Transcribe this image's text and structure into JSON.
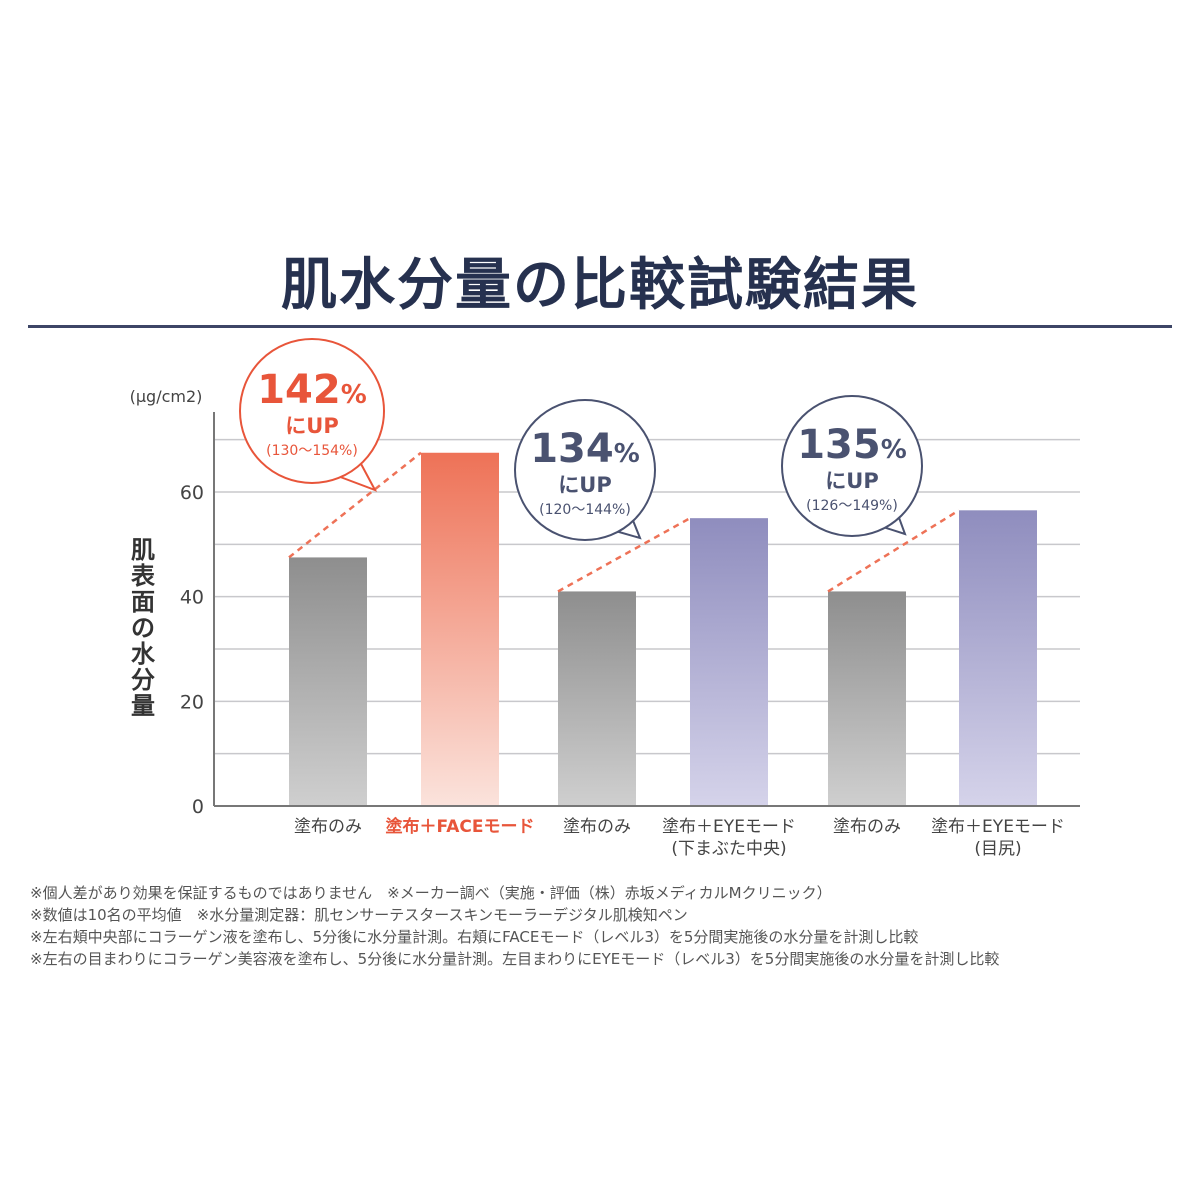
{
  "title": "肌水分量の比較試験結果",
  "chart_data": {
    "type": "bar",
    "unit": "(μg/cm2)",
    "ylabel": "肌表面の水分量",
    "ylim": [
      0,
      75
    ],
    "yticks": [
      0,
      20,
      40,
      60
    ],
    "grid": true,
    "categories": [
      "塗布のみ",
      "塗布＋FACEモード",
      "塗布のみ",
      "塗布＋EYEモード",
      "塗布のみ",
      "塗布＋EYEモード"
    ],
    "category_sublabels": [
      "",
      "",
      "",
      "(下まぶた中央)",
      "",
      "(目尻)"
    ],
    "values": [
      47.5,
      67.5,
      41,
      55,
      41,
      56.5
    ],
    "bar_styles": [
      "gray",
      "orange",
      "gray",
      "purple",
      "gray",
      "purple"
    ],
    "callouts": [
      {
        "pct": "142",
        "unit": "%",
        "line2": "にUP",
        "line3": "(130〜154%)",
        "color": "#e8553a"
      },
      {
        "pct": "134",
        "unit": "%",
        "line2": "にUP",
        "line3": "(120〜144%)",
        "color": "#4a5270"
      },
      {
        "pct": "135",
        "unit": "%",
        "line2": "にUP",
        "line3": "(126〜149%)",
        "color": "#4a5270"
      }
    ]
  },
  "colors": {
    "gray_top": "#8e8e8e",
    "gray_bottom": "#cfcfcf",
    "orange_top": "#ee7257",
    "orange_bottom": "#fbe3dc",
    "purple_top": "#8f8dbe",
    "purple_bottom": "#d5d3ea",
    "highlight_label": "#e8553a"
  },
  "notes": [
    "※個人差があり効果を保証するものではありません　※メーカー調べ（実施・評価（株）赤坂メディカルMクリニック）",
    "※数値は10名の平均値　※水分量測定器：肌センサーテスタースキンモーラーデジタル肌検知ペン",
    "※左右頬中央部にコラーゲン液を塗布し、5分後に水分量計測。右頬にFACEモード（レベル3）を5分間実施後の水分量を計測し比較",
    "※左右の目まわりにコラーゲン美容液を塗布し、5分後に水分量計測。左目まわりにEYEモード（レベル3）を5分間実施後の水分量を計測し比較"
  ]
}
